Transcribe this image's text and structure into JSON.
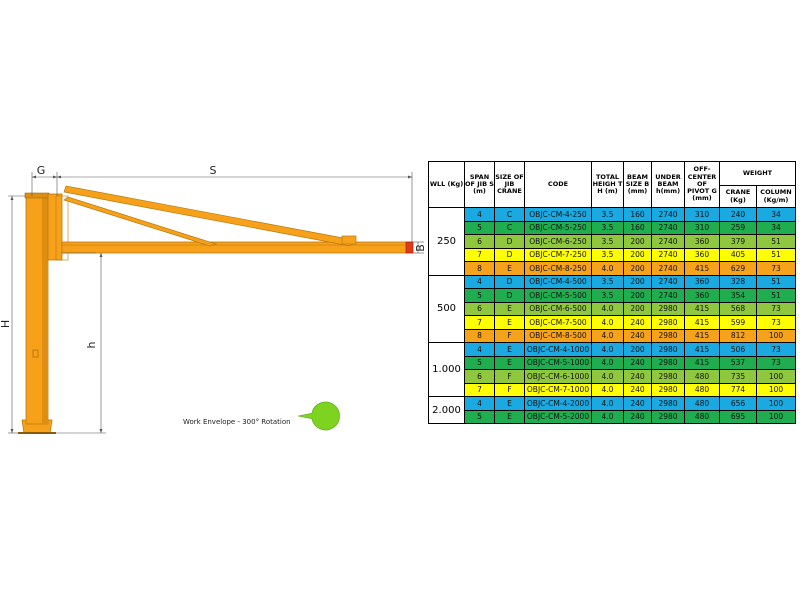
{
  "diagram": {
    "labels": {
      "G": "G",
      "S": "S",
      "H": "H",
      "h": "h",
      "B": "B"
    },
    "work_envelope": "Work Envelope - 300° Rotation",
    "colors": {
      "crane": "#f7a11a",
      "crane_shadow": "#d98a10",
      "envelope": "#7ed321",
      "dim_line": "#555555"
    }
  },
  "table": {
    "headers": {
      "wll": "WLL (Kg)",
      "span": "SPAN OF JIB S (m)",
      "size": "SIZE OF JIB CRANE",
      "code": "CODE",
      "height": "TOTAL HEIGH T H (m)",
      "beam": "BEAM SIZE B (mm)",
      "under": "UNDER BEAM h(mm)",
      "offset": "OFF-CENTER OF PIVOT G (mm)",
      "weight": "WEIGHT",
      "crane": "CRANE (Kg)",
      "column": "COLUMN (Kg/m)"
    },
    "groups": [
      {
        "wll": "250",
        "rows": [
          {
            "color": "blue",
            "span": "4",
            "size": "C",
            "code": "OBJC-CM-4-250",
            "height": "3.5",
            "beam": "160",
            "under": "2740",
            "offset": "310",
            "crane": "240",
            "column": "34"
          },
          {
            "color": "green",
            "span": "5",
            "size": "C",
            "code": "OBJC-CM-5-250",
            "height": "3.5",
            "beam": "160",
            "under": "2740",
            "offset": "310",
            "crane": "259",
            "column": "34"
          },
          {
            "color": "lime",
            "span": "6",
            "size": "D",
            "code": "OBJC-CM-6-250",
            "height": "3.5",
            "beam": "200",
            "under": "2740",
            "offset": "360",
            "crane": "379",
            "column": "51"
          },
          {
            "color": "yellow",
            "span": "7",
            "size": "D",
            "code": "OBJC-CM-7-250",
            "height": "3.5",
            "beam": "200",
            "under": "2740",
            "offset": "360",
            "crane": "405",
            "column": "51"
          },
          {
            "color": "orange",
            "span": "8",
            "size": "E",
            "code": "OBJC-CM-8-250",
            "height": "4.0",
            "beam": "200",
            "under": "2740",
            "offset": "415",
            "crane": "629",
            "column": "73"
          }
        ]
      },
      {
        "wll": "500",
        "rows": [
          {
            "color": "blue",
            "span": "4",
            "size": "D",
            "code": "OBJC-CM-4-500",
            "height": "3.5",
            "beam": "200",
            "under": "2740",
            "offset": "360",
            "crane": "328",
            "column": "51"
          },
          {
            "color": "green",
            "span": "5",
            "size": "D",
            "code": "OBJC-CM-5-500",
            "height": "3.5",
            "beam": "200",
            "under": "2740",
            "offset": "360",
            "crane": "354",
            "column": "51"
          },
          {
            "color": "lime",
            "span": "6",
            "size": "E",
            "code": "OBJC-CM-6-500",
            "height": "4.0",
            "beam": "200",
            "under": "2980",
            "offset": "415",
            "crane": "568",
            "column": "73"
          },
          {
            "color": "yellow",
            "span": "7",
            "size": "E",
            "code": "OBJC-CM-7-500",
            "height": "4.0",
            "beam": "240",
            "under": "2980",
            "offset": "415",
            "crane": "599",
            "column": "73"
          },
          {
            "color": "orange",
            "span": "8",
            "size": "F",
            "code": "OBJC-CM-8-500",
            "height": "4.0",
            "beam": "240",
            "under": "2980",
            "offset": "415",
            "crane": "812",
            "column": "100"
          }
        ]
      },
      {
        "wll": "1.000",
        "rows": [
          {
            "color": "blue",
            "span": "4",
            "size": "E",
            "code": "OBJC-CM-4-1000",
            "height": "4.0",
            "beam": "200",
            "under": "2980",
            "offset": "415",
            "crane": "506",
            "column": "73"
          },
          {
            "color": "green",
            "span": "5",
            "size": "E",
            "code": "OBJC-CM-5-1000",
            "height": "4.0",
            "beam": "240",
            "under": "2980",
            "offset": "415",
            "crane": "537",
            "column": "73"
          },
          {
            "color": "lime",
            "span": "6",
            "size": "F",
            "code": "OBJC-CM-6-1000",
            "height": "4.0",
            "beam": "240",
            "under": "2980",
            "offset": "480",
            "crane": "735",
            "column": "100"
          },
          {
            "color": "yellow",
            "span": "7",
            "size": "F",
            "code": "OBJC-CM-7-1000",
            "height": "4.0",
            "beam": "240",
            "under": "2980",
            "offset": "480",
            "crane": "774",
            "column": "100"
          }
        ]
      },
      {
        "wll": "2.000",
        "rows": [
          {
            "color": "blue",
            "span": "4",
            "size": "E",
            "code": "OBJC-CM-4-2000",
            "height": "4.0",
            "beam": "240",
            "under": "2980",
            "offset": "480",
            "crane": "656",
            "column": "100"
          },
          {
            "color": "green",
            "span": "5",
            "size": "E",
            "code": "OBJC-CM-5-2000",
            "height": "4.0",
            "beam": "240",
            "under": "2980",
            "offset": "480",
            "crane": "695",
            "column": "100"
          }
        ]
      }
    ]
  }
}
